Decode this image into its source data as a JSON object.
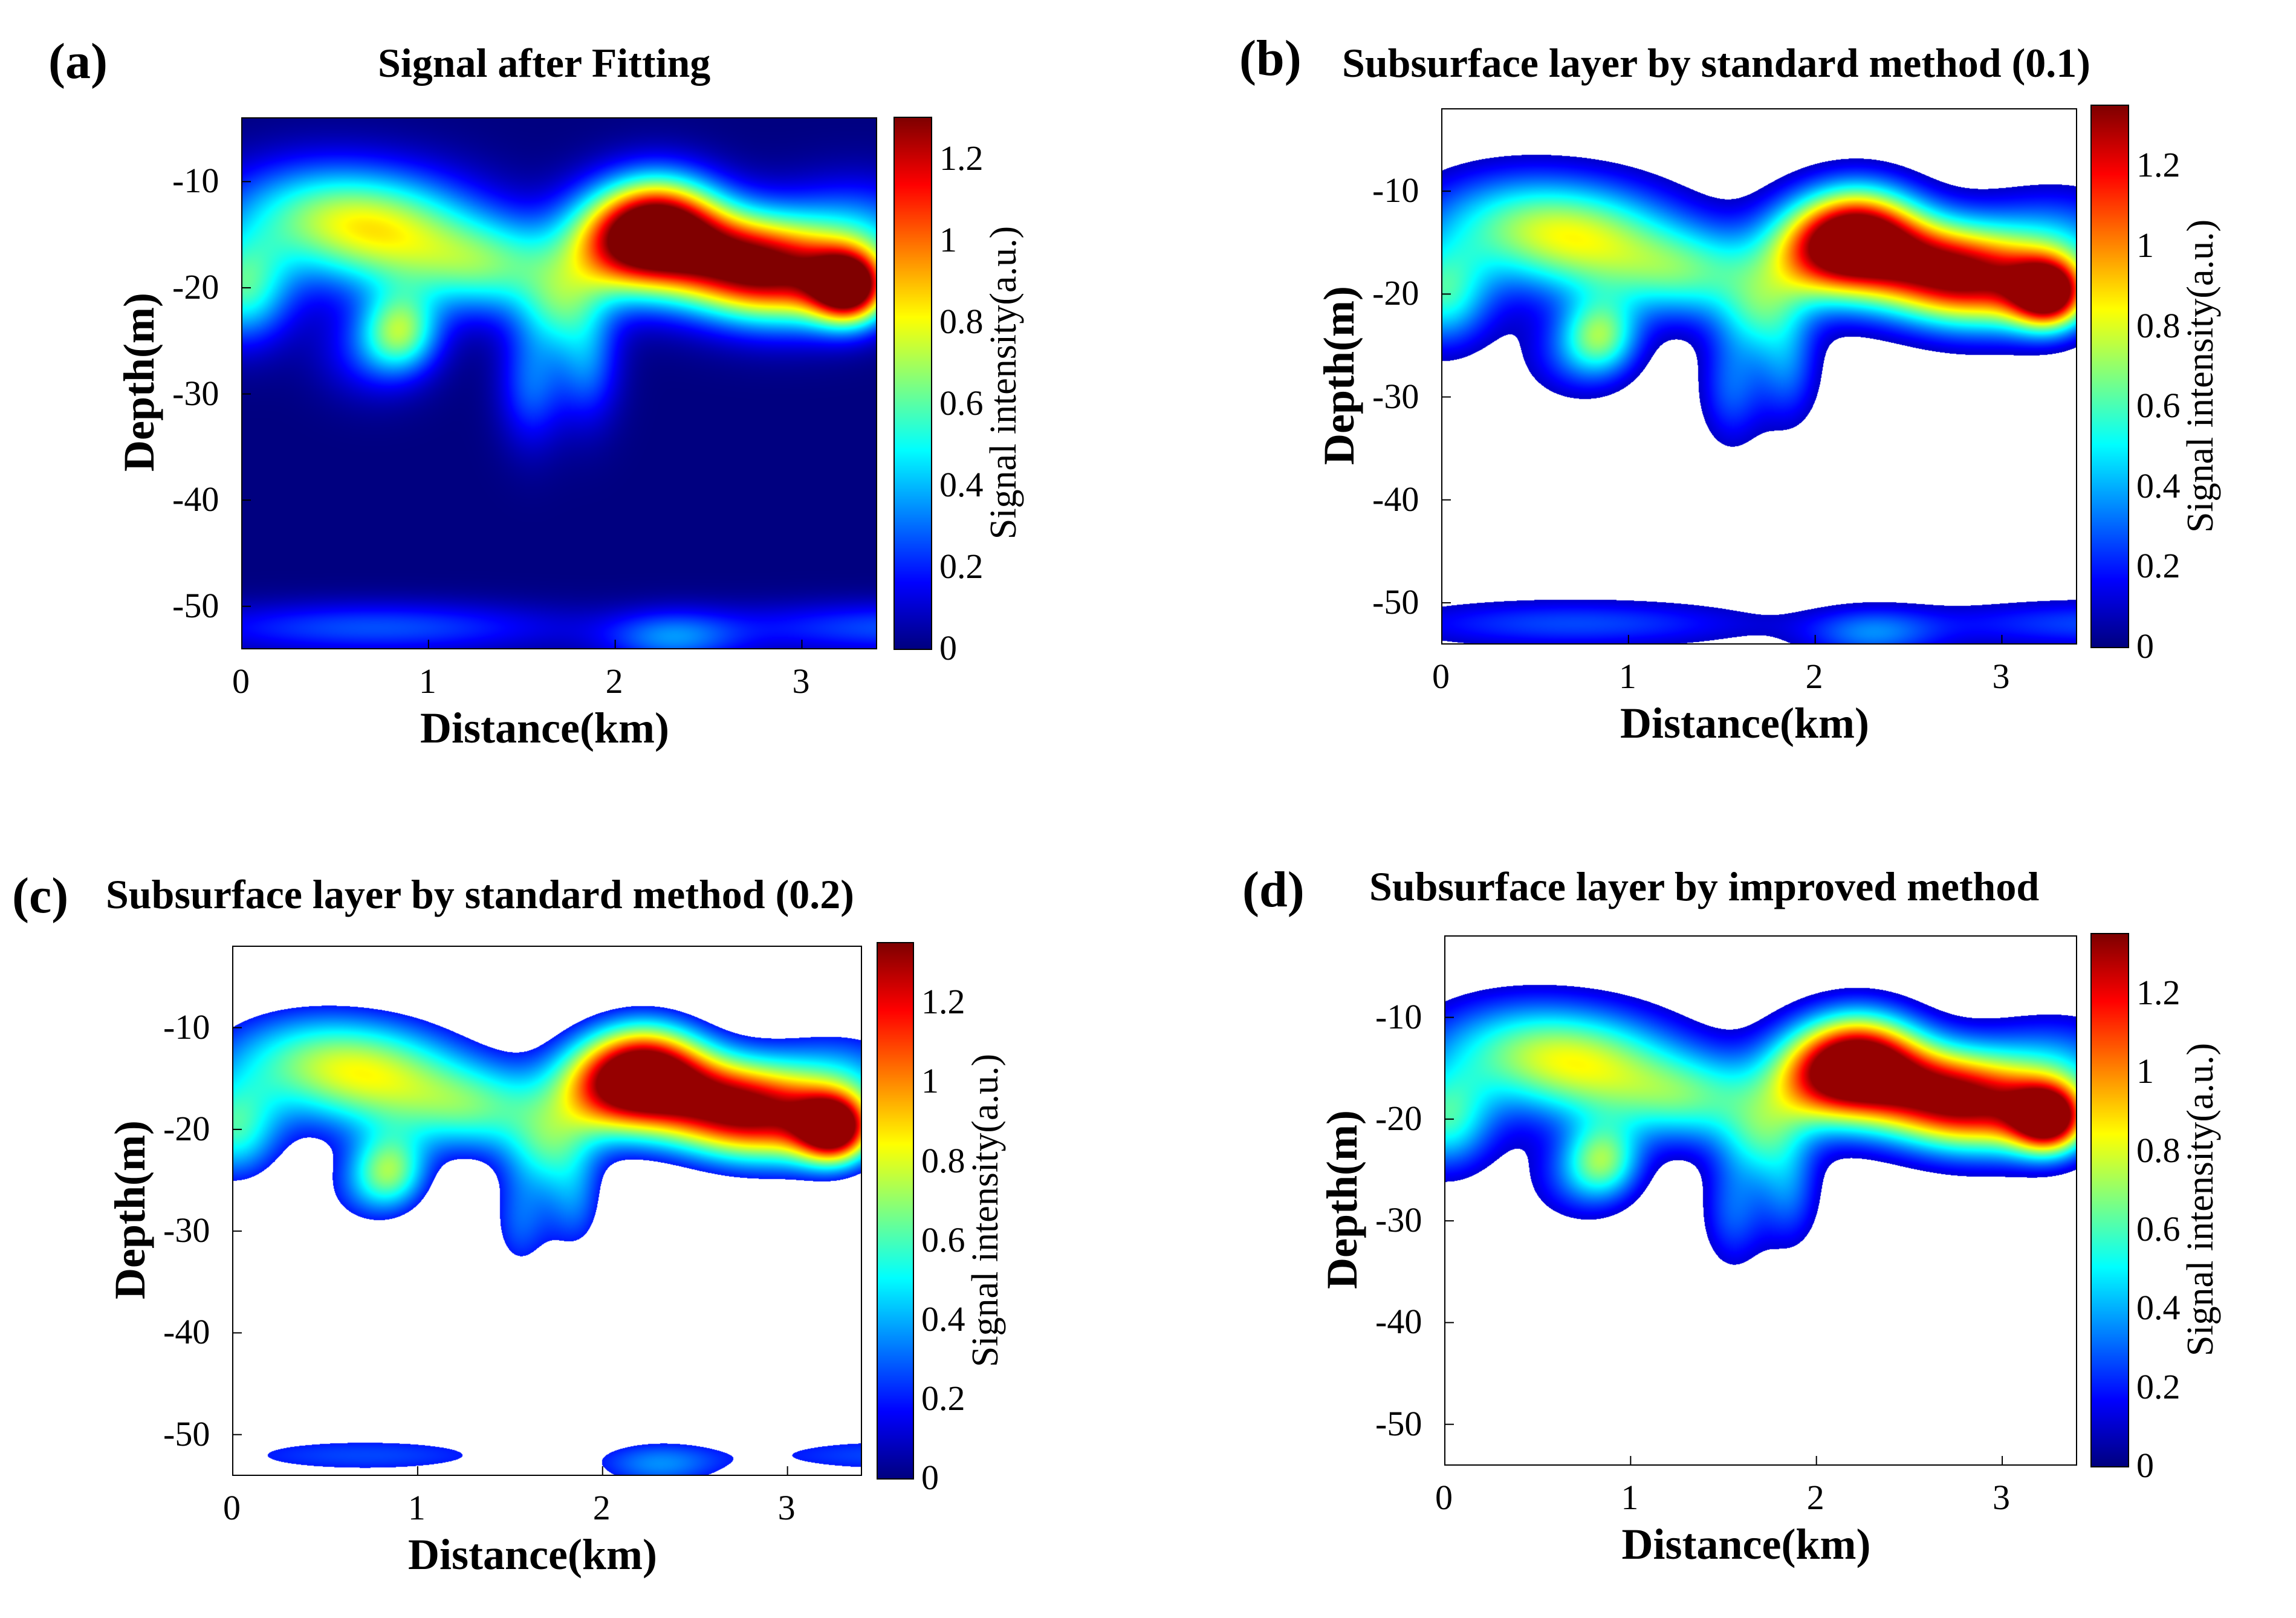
{
  "colors": {
    "colormap": [
      "#00007f",
      "#0000ff",
      "#007fff",
      "#00ffff",
      "#7fff7f",
      "#ffff00",
      "#ff7f00",
      "#ff0000",
      "#7f0000"
    ],
    "background": "#ffffff",
    "axis": "#000000"
  },
  "chart_data": [
    {
      "panel": "(a)",
      "type": "heatmap",
      "title": "Signal after Fitting",
      "xlabel": "Distance(km)",
      "ylabel": "Depth(m)",
      "xlim": [
        0,
        3.4
      ],
      "ylim": [
        -54,
        -4
      ],
      "xticks": [
        "0",
        "1",
        "2",
        "3"
      ],
      "yticks": [
        "-10",
        "-20",
        "-30",
        "-40",
        "-50"
      ],
      "colorbar": {
        "label": "Signal intensity(a.u.)",
        "range": [
          0,
          1.3
        ],
        "ticks": [
          "0",
          "0.2",
          "0.4",
          "0.6",
          "0.8",
          "1",
          "1.2"
        ]
      },
      "threshold": null,
      "background_fill": "colormap-min"
    },
    {
      "panel": "(b)",
      "type": "heatmap",
      "title": "Subsurface layer by standard method (0.1)",
      "xlabel": "Distance(km)",
      "ylabel": "Depth(m)",
      "xlim": [
        0,
        3.4
      ],
      "ylim": [
        -54,
        -2
      ],
      "xticks": [
        "0",
        "1",
        "2",
        "3"
      ],
      "yticks": [
        "-10",
        "-20",
        "-30",
        "-40",
        "-50"
      ],
      "colorbar": {
        "label": "Signal intensity(a.u.)",
        "range": [
          0,
          1.35
        ],
        "ticks": [
          "0",
          "0.2",
          "0.4",
          "0.6",
          "0.8",
          "1",
          "1.2"
        ]
      },
      "threshold": 0.1,
      "background_fill": "white"
    },
    {
      "panel": "(c)",
      "type": "heatmap",
      "title": "Subsurface layer by standard method (0.2)",
      "xlabel": "Distance(km)",
      "ylabel": "Depth(m)",
      "xlim": [
        0,
        3.4
      ],
      "ylim": [
        -54,
        -2
      ],
      "xticks": [
        "0",
        "1",
        "2",
        "3"
      ],
      "yticks": [
        "-10",
        "-20",
        "-30",
        "-40",
        "-50"
      ],
      "colorbar": {
        "label": "Signal intensity(a.u.)",
        "range": [
          0,
          1.35
        ],
        "ticks": [
          "0",
          "0.2",
          "0.4",
          "0.6",
          "0.8",
          "1",
          "1.2"
        ]
      },
      "threshold": 0.2,
      "background_fill": "white"
    },
    {
      "panel": "(d)",
      "type": "heatmap",
      "title": "Subsurface layer by improved method",
      "xlabel": "Distance(km)",
      "ylabel": "Depth(m)",
      "xlim": [
        0,
        3.4
      ],
      "ylim": [
        -54,
        -2
      ],
      "xticks": [
        "0",
        "1",
        "2",
        "3"
      ],
      "yticks": [
        "-10",
        "-20",
        "-30",
        "-40",
        "-50"
      ],
      "colorbar": {
        "label": "Signal intensity(a.u.)",
        "range": [
          0,
          1.35
        ],
        "ticks": [
          "0",
          "0.2",
          "0.4",
          "0.6",
          "0.8",
          "1",
          "1.2"
        ]
      },
      "threshold": 0.12,
      "background_fill": "white",
      "remove_bottom_layer": true
    }
  ]
}
